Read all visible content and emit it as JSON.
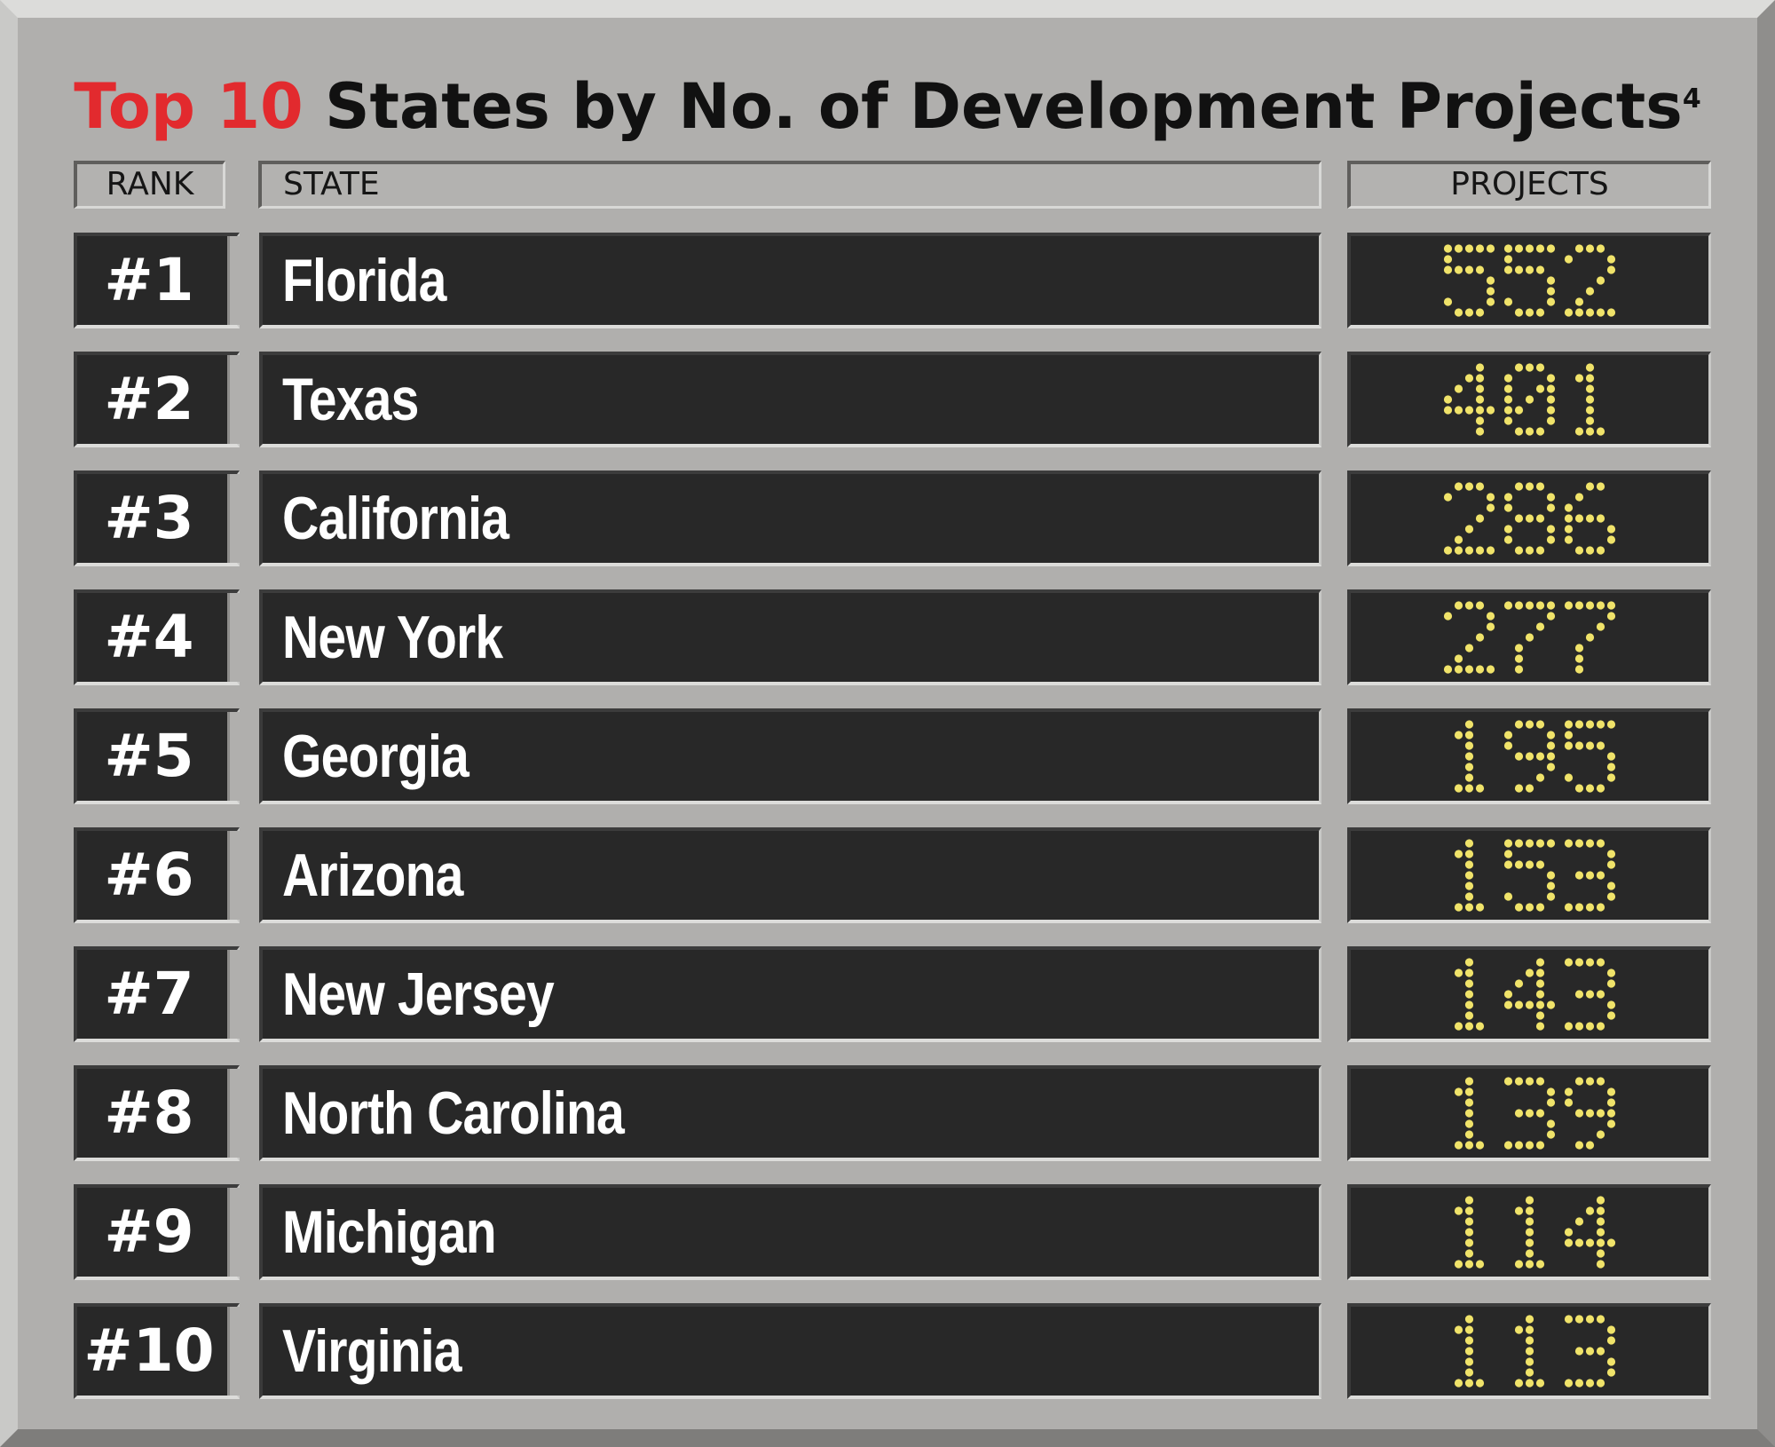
{
  "header": {
    "title_accent": "Top 10",
    "title_rest": " States by No. of Development Projects",
    "title_sup": "4"
  },
  "columns": {
    "rank": "RANK",
    "state": "STATE",
    "projects": "PROJECTS"
  },
  "colors": {
    "accent": "#e22a2e",
    "digit": "#f0e36a",
    "row_background": "#282828",
    "board": "#b0afad"
  },
  "chart_data": {
    "type": "table",
    "title": "Top 10 States by No. of Development Projects",
    "columns": [
      "RANK",
      "STATE",
      "PROJECTS"
    ],
    "rows": [
      {
        "rank": "#1",
        "state": "Florida",
        "projects": "552"
      },
      {
        "rank": "#2",
        "state": "Texas",
        "projects": "401"
      },
      {
        "rank": "#3",
        "state": "California",
        "projects": "286"
      },
      {
        "rank": "#4",
        "state": "New York",
        "projects": "277"
      },
      {
        "rank": "#5",
        "state": "Georgia",
        "projects": "195"
      },
      {
        "rank": "#6",
        "state": "Arizona",
        "projects": "153"
      },
      {
        "rank": "#7",
        "state": "New Jersey",
        "projects": "143"
      },
      {
        "rank": "#8",
        "state": "North Carolina",
        "projects": "139"
      },
      {
        "rank": "#9",
        "state": "Michigan",
        "projects": "114"
      },
      {
        "rank": "#10",
        "state": "Virginia",
        "projects": "113"
      }
    ]
  }
}
